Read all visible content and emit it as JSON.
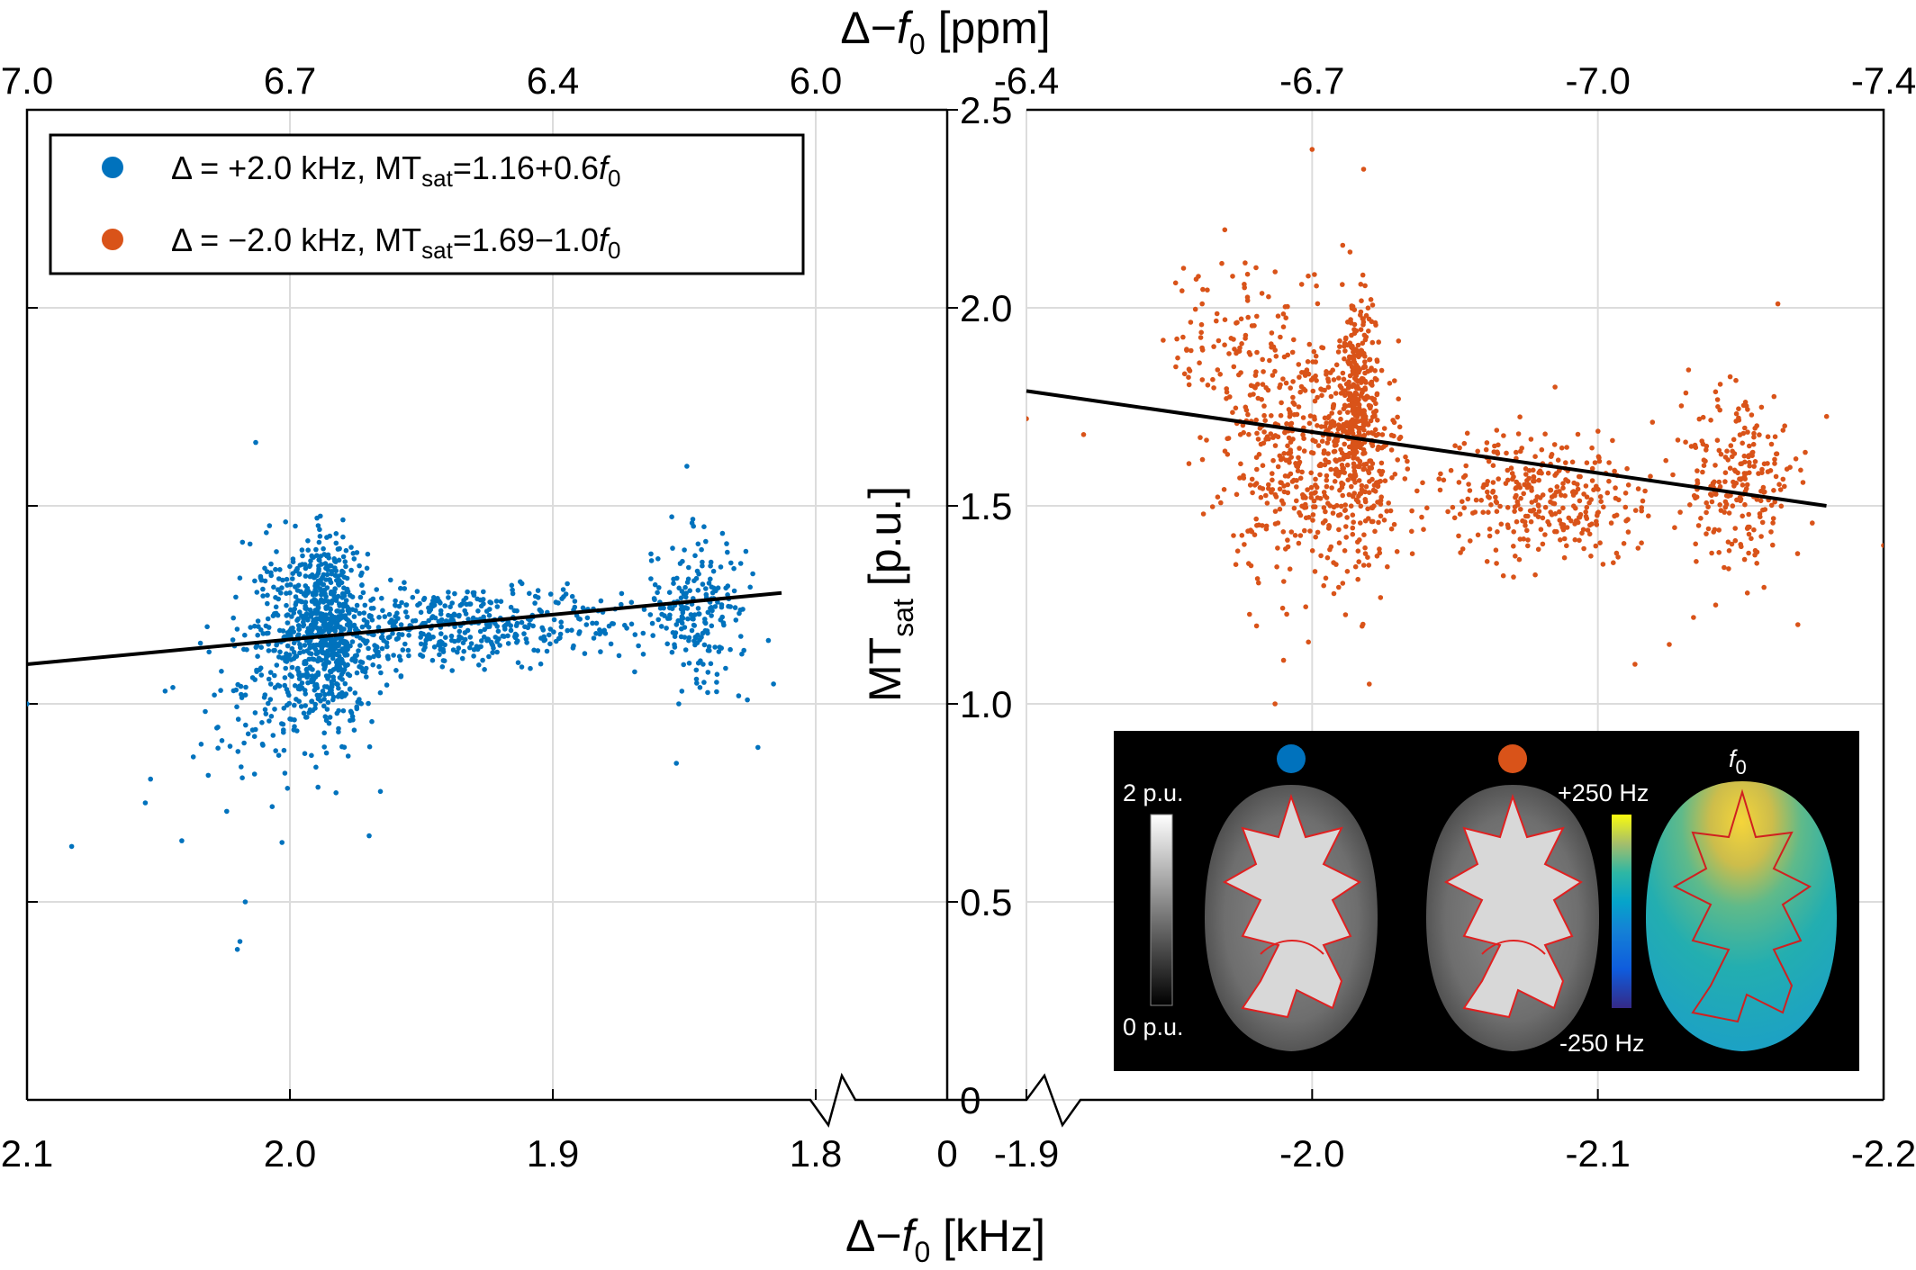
{
  "chart_data": {
    "type": "scatter",
    "x_break": true,
    "grid": true,
    "legend_position": "top-left",
    "bottom_axis": {
      "label": "Δ−f0 [kHz]",
      "left_range": [
        2.1,
        1.75
      ],
      "right_range": [
        -1.9,
        -2.2
      ],
      "left_ticks": [
        "2.1",
        "2.0",
        "1.9",
        "1.8"
      ],
      "right_ticks": [
        "-1.9",
        "-2.0",
        "-2.1",
        "-2.2"
      ],
      "break_label": "0"
    },
    "top_axis": {
      "label": "Δ−f0 [ppm]",
      "left_ticks": [
        "7.0",
        "6.7",
        "6.4",
        "6.0"
      ],
      "right_ticks": [
        "-6.4",
        "-6.7",
        "-7.0",
        "-7.4"
      ]
    },
    "y_axis": {
      "label": "MTsat [p.u.]",
      "ylim": [
        0,
        2.5
      ],
      "ticks": [
        "0",
        "0.5",
        "1.0",
        "1.5",
        "2.0",
        "2.5"
      ]
    },
    "series": [
      {
        "name": "Δ = +2.0 kHz, MTsat=1.16+0.6f0",
        "color": "#0072BD",
        "fit": {
          "x": [
            2.1,
            1.813
          ],
          "y": [
            1.1,
            1.28
          ]
        },
        "clusters": [
          {
            "x_center": 1.99,
            "x_spread": 0.013,
            "y_center": 1.17,
            "y_spread": 0.12,
            "n": 520
          },
          {
            "x_center": 1.985,
            "x_spread": 0.005,
            "y_center": 1.2,
            "y_spread": 0.11,
            "n": 280
          },
          {
            "x_center": 1.93,
            "x_spread": 0.03,
            "y_center": 1.2,
            "y_spread": 0.05,
            "n": 420
          },
          {
            "x_center": 1.845,
            "x_spread": 0.009,
            "y_center": 1.24,
            "y_spread": 0.09,
            "n": 200
          },
          {
            "x_center": 2.01,
            "x_spread": 0.015,
            "y_center": 1.0,
            "y_spread": 0.12,
            "n": 100
          }
        ],
        "outliers": [
          {
            "x": 2.083,
            "y": 0.64
          },
          {
            "x": 2.02,
            "y": 0.38
          },
          {
            "x": 2.019,
            "y": 0.4
          },
          {
            "x": 2.017,
            "y": 0.5
          },
          {
            "x": 2.013,
            "y": 1.66
          },
          {
            "x": 1.826,
            "y": 1.01
          },
          {
            "x": 1.822,
            "y": 0.89
          },
          {
            "x": 1.849,
            "y": 1.6
          },
          {
            "x": 1.853,
            "y": 0.85
          },
          {
            "x": 2.1,
            "y": 1.0
          },
          {
            "x": 2.055,
            "y": 0.75
          },
          {
            "x": 2.053,
            "y": 0.81
          },
          {
            "x": 2.003,
            "y": 0.65
          },
          {
            "x": 1.818,
            "y": 1.16
          }
        ]
      },
      {
        "name": "Δ = −2.0 kHz, MTsat=1.69−1.0f0",
        "color": "#D95319",
        "fit": {
          "x": [
            -1.9,
            -2.18
          ],
          "y": [
            1.79,
            1.5
          ]
        },
        "clusters": [
          {
            "x_center": -2.0,
            "x_spread": 0.015,
            "y_center": 1.62,
            "y_spread": 0.16,
            "n": 520
          },
          {
            "x_center": -2.016,
            "x_spread": 0.004,
            "y_center": 1.75,
            "y_spread": 0.14,
            "n": 340
          },
          {
            "x_center": -2.08,
            "x_spread": 0.025,
            "y_center": 1.52,
            "y_spread": 0.08,
            "n": 350
          },
          {
            "x_center": -2.15,
            "x_spread": 0.01,
            "y_center": 1.56,
            "y_spread": 0.1,
            "n": 220
          },
          {
            "x_center": -1.975,
            "x_spread": 0.015,
            "y_center": 1.9,
            "y_spread": 0.1,
            "n": 110
          }
        ],
        "outliers": [
          {
            "x": -1.9,
            "y": 1.72
          },
          {
            "x": -1.92,
            "y": 1.68
          },
          {
            "x": -1.955,
            "y": 2.1
          },
          {
            "x": -2.0,
            "y": 2.4
          },
          {
            "x": -2.018,
            "y": 2.35
          },
          {
            "x": -1.987,
            "y": 1.0
          },
          {
            "x": -2.02,
            "y": 1.05
          },
          {
            "x": -2.163,
            "y": 2.01
          },
          {
            "x": -2.113,
            "y": 1.1
          },
          {
            "x": -2.2,
            "y": 1.4
          },
          {
            "x": -2.085,
            "y": 1.8
          },
          {
            "x": -1.99,
            "y": 1.11
          },
          {
            "x": -2.17,
            "y": 1.2
          },
          {
            "x": -2.125,
            "y": 1.15
          }
        ]
      }
    ]
  },
  "legend": {
    "items": [
      {
        "prefix": "Δ = +2.0 kHz, MT",
        "sub": "sat",
        "eq": "=1.16+0.6",
        "var": "f",
        "var_sub": "0",
        "color": "#0072BD"
      },
      {
        "prefix": "Δ = −2.0 kHz, MT",
        "sub": "sat",
        "eq": "=1.69−1.0",
        "var": "f",
        "var_sub": "0",
        "color": "#D95319"
      }
    ]
  },
  "labels": {
    "top_prefix": "Δ−",
    "top_var": "f",
    "top_sub": "0",
    "top_unit": " [ppm]",
    "bottom_prefix": "Δ−",
    "bottom_var": "f",
    "bottom_sub": "0",
    "bottom_unit": " [kHz]",
    "y_main": "MT",
    "y_sub": "sat",
    "y_unit": " [p.u.]"
  },
  "inset": {
    "gray_top": "2 p.u.",
    "gray_bottom": "0 p.u.",
    "f0_top": "+250 Hz",
    "f0_bottom": "-250 Hz",
    "f0_label": "f",
    "f0_sub": "0",
    "marker_colors": [
      "#0072BD",
      "#D95319"
    ]
  }
}
